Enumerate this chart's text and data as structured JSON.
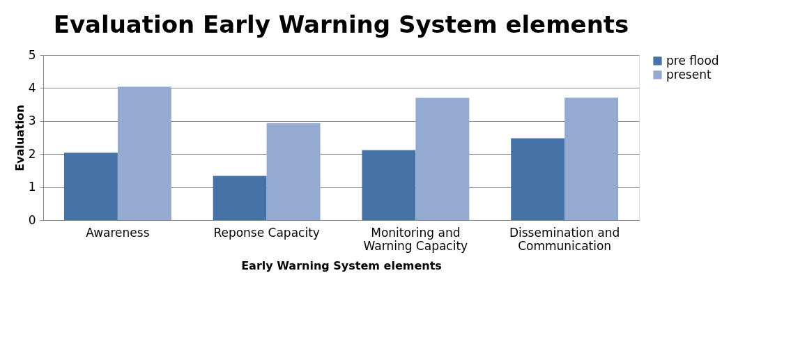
{
  "chart_data": {
    "type": "bar",
    "title": "Evaluation Early Warning System elements",
    "xlabel": "Early Warning System elements",
    "ylabel": "Evaluation",
    "categories": [
      "Awareness",
      "Reponse Capacity",
      "Monitoring and Warning Capacity",
      "Dissemination and Communication"
    ],
    "series": [
      {
        "name": "pre flood",
        "color": "#4572a7",
        "values": [
          2.04,
          1.34,
          2.12,
          2.48
        ]
      },
      {
        "name": "present",
        "color": "#95aad0",
        "values": [
          4.04,
          2.94,
          3.7,
          3.71
        ]
      }
    ],
    "ylim": [
      0,
      5
    ],
    "yticks": [
      0,
      1,
      2,
      3,
      4,
      5
    ],
    "grid": "y",
    "legend": "right"
  }
}
